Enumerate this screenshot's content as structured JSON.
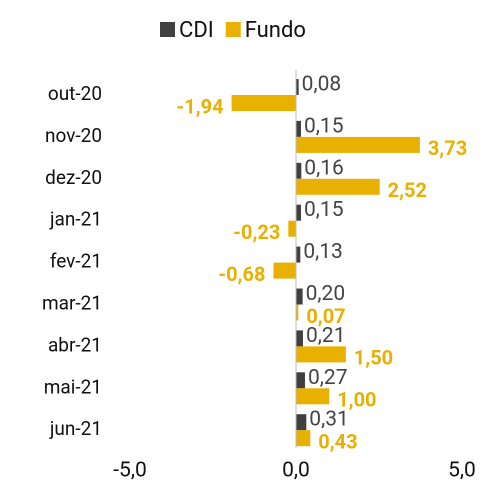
{
  "chart_data": {
    "type": "bar",
    "orientation": "horizontal",
    "categories": [
      "out-20",
      "nov-20",
      "dez-20",
      "jan-21",
      "fev-21",
      "mar-21",
      "abr-21",
      "mai-21",
      "jun-21"
    ],
    "series": [
      {
        "name": "CDI",
        "color": "#404040",
        "values": [
          0.08,
          0.15,
          0.16,
          0.15,
          0.13,
          0.2,
          0.21,
          0.27,
          0.31
        ],
        "value_labels": [
          "0,08",
          "0,15",
          "0,16",
          "0,15",
          "0,13",
          "0,20",
          "0,21",
          "0,27",
          "0,31"
        ]
      },
      {
        "name": "Fundo",
        "color": "#e8b000",
        "values": [
          -1.94,
          3.73,
          2.52,
          -0.23,
          -0.68,
          0.07,
          1.5,
          1.0,
          0.43
        ],
        "value_labels": [
          "-1,94",
          "3,73",
          "2,52",
          "-0,23",
          "-0,68",
          "0,07",
          "1,50",
          "1,00",
          "0,43"
        ]
      }
    ],
    "xlim": [
      -5,
      5
    ],
    "xticks": [
      {
        "value": -5,
        "label": "-5,0"
      },
      {
        "value": 0,
        "label": "0,0"
      },
      {
        "value": 5,
        "label": "5,0"
      }
    ],
    "legend": "top"
  }
}
